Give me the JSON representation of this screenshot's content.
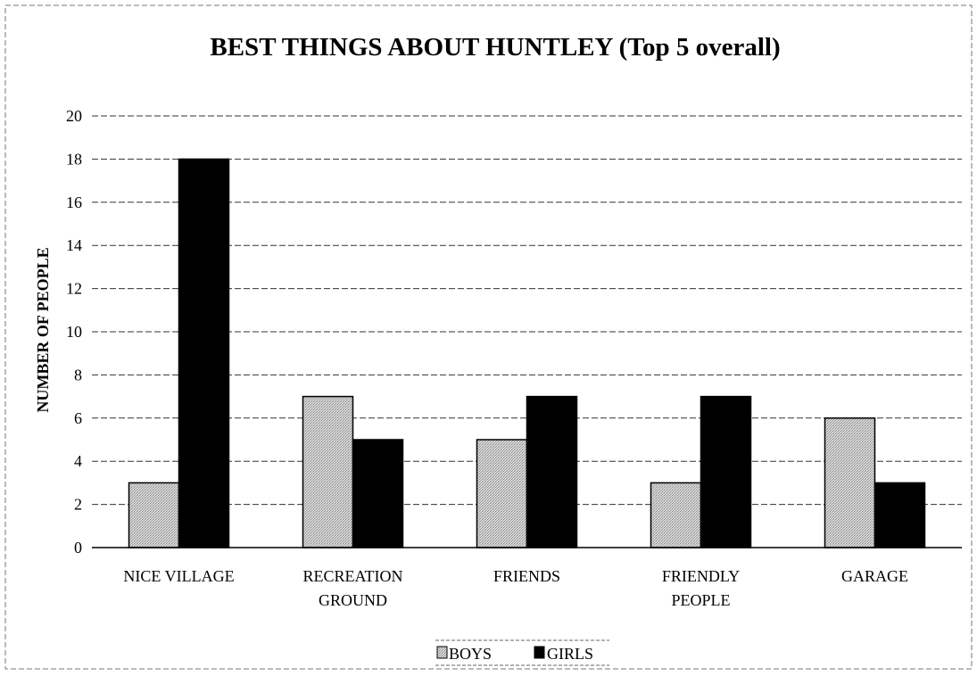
{
  "chart_data": {
    "type": "bar",
    "title": "BEST THINGS ABOUT HUNTLEY (Top 5 overall)",
    "xlabel": "",
    "ylabel": "NUMBER OF PEOPLE",
    "categories": [
      [
        "NICE VILLAGE"
      ],
      [
        "RECREATION",
        "GROUND"
      ],
      [
        "FRIENDS"
      ],
      [
        "FRIENDLY",
        "PEOPLE"
      ],
      [
        "GARAGE"
      ]
    ],
    "series": [
      {
        "name": "BOYS",
        "values": [
          3,
          7,
          5,
          3,
          6
        ],
        "color": "#c8c8c8"
      },
      {
        "name": "GIRLS",
        "values": [
          18,
          5,
          7,
          7,
          3
        ],
        "color": "#000000"
      }
    ],
    "ylim": [
      0,
      20
    ],
    "yticks": [
      0,
      2,
      4,
      6,
      8,
      10,
      12,
      14,
      16,
      18,
      20
    ],
    "grid": true,
    "legend_position": "bottom"
  }
}
